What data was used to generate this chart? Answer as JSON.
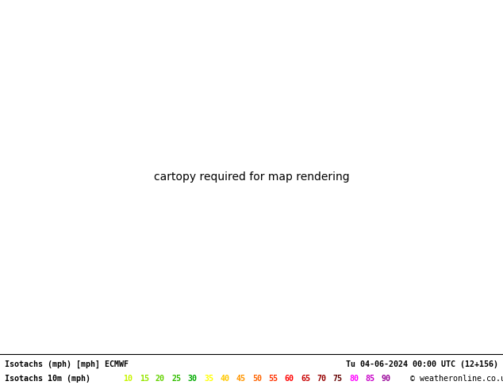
{
  "title_left": "Isotachs (mph) [mph] ECMWF",
  "title_right": "Tu 04-06-2024 00:00 UTC (12+156)",
  "legend_label": "Isotachs 10m (mph)",
  "legend_values": [
    "10",
    "15",
    "20",
    "25",
    "30",
    "35",
    "40",
    "45",
    "50",
    "55",
    "60",
    "65",
    "70",
    "75",
    "80",
    "85",
    "90"
  ],
  "legend_colors": [
    "#c8f500",
    "#96e600",
    "#64d200",
    "#32be00",
    "#00aa00",
    "#ffff00",
    "#ffc800",
    "#ff9600",
    "#ff6400",
    "#ff3200",
    "#ff0000",
    "#c80000",
    "#960000",
    "#640000",
    "#ff00ff",
    "#c800c8",
    "#960096"
  ],
  "land_color": "#90d060",
  "sea_color": "#d8d8e8",
  "coastline_color": "#000000",
  "border_color": "#404040",
  "contour_10_color": "#c8f500",
  "contour_15_color": "#ffcc00",
  "contour_20_color": "#00ccaa",
  "contour_25_color": "#00aacc",
  "pressure_label_color": "#000000",
  "text_color": "#000000",
  "copyright": "© weatheronline.co.uk",
  "bottom_bg": "#ffffff",
  "map_bg": "#90d060",
  "fig_width": 6.34,
  "fig_height": 4.9,
  "extent": [
    3.0,
    32.0,
    49.0,
    61.5
  ]
}
